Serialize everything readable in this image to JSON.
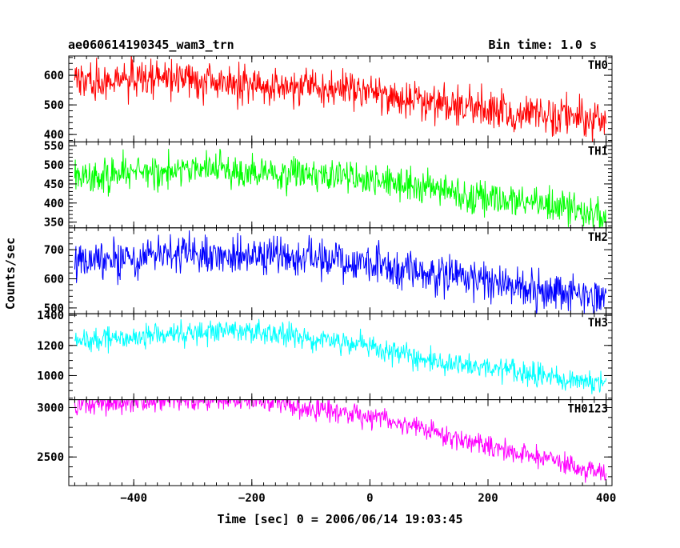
{
  "chart_data": {
    "type": "line",
    "title": "ae060614190345_wam3_trn",
    "subtitle": "Bin time: 1.0 s",
    "xlabel": "Time [sec] 0 = 2006/06/14 19:03:45",
    "ylabel": "Counts/sec",
    "xlim": [
      -510,
      410
    ],
    "x_ticks": [
      -400,
      -200,
      0,
      200,
      400
    ],
    "x_tick_labels": [
      "−400",
      "−200",
      "0",
      "200",
      "400"
    ],
    "x_minor_step": 20,
    "bin_time_s": 1.0,
    "grid": false,
    "panels": [
      {
        "name": "TH0",
        "color": "#ff0000",
        "ylim": [
          375,
          665
        ],
        "y_ticks": [
          400,
          500,
          600
        ],
        "y_tick_labels": [
          "400",
          "500",
          "600"
        ],
        "y_minor_step": 20,
        "noise_sd": 32,
        "trend": [
          [
            -500,
            575
          ],
          [
            -400,
            588
          ],
          [
            -300,
            590
          ],
          [
            -250,
            575
          ],
          [
            -200,
            572
          ],
          [
            -100,
            560
          ],
          [
            0,
            540
          ],
          [
            100,
            510
          ],
          [
            200,
            488
          ],
          [
            300,
            462
          ],
          [
            400,
            445
          ]
        ]
      },
      {
        "name": "TH1",
        "color": "#00ff00",
        "ylim": [
          335,
          560
        ],
        "y_ticks": [
          350,
          400,
          450,
          500,
          550
        ],
        "y_tick_labels": [
          "350",
          "400",
          "450",
          "500",
          "550"
        ],
        "y_minor_step": 10,
        "noise_sd": 22,
        "trend": [
          [
            -500,
            475
          ],
          [
            -400,
            483
          ],
          [
            -300,
            488
          ],
          [
            -200,
            482
          ],
          [
            -100,
            475
          ],
          [
            0,
            462
          ],
          [
            100,
            440
          ],
          [
            200,
            418
          ],
          [
            300,
            395
          ],
          [
            400,
            375
          ]
        ]
      },
      {
        "name": "TH2",
        "color": "#0000ff",
        "ylim": [
          480,
          775
        ],
        "y_ticks": [
          500,
          600,
          700
        ],
        "y_tick_labels": [
          "500",
          "600",
          "700"
        ],
        "y_minor_step": 20,
        "noise_sd": 33,
        "trend": [
          [
            -500,
            660
          ],
          [
            -400,
            672
          ],
          [
            -300,
            682
          ],
          [
            -200,
            680
          ],
          [
            -100,
            672
          ],
          [
            0,
            650
          ],
          [
            100,
            615
          ],
          [
            200,
            590
          ],
          [
            300,
            560
          ],
          [
            400,
            535
          ]
        ]
      },
      {
        "name": "TH3",
        "color": "#00ffff",
        "ylim": [
          840,
          1410
        ],
        "y_ticks": [
          1000,
          1200,
          1400
        ],
        "y_tick_labels": [
          "1000",
          "1200",
          "1400"
        ],
        "y_minor_step": 50,
        "noise_sd": 38,
        "trend": [
          [
            -500,
            1220
          ],
          [
            -400,
            1258
          ],
          [
            -300,
            1292
          ],
          [
            -200,
            1295
          ],
          [
            -150,
            1280
          ],
          [
            -100,
            1240
          ],
          [
            0,
            1200
          ],
          [
            100,
            1100
          ],
          [
            200,
            1055
          ],
          [
            300,
            995
          ],
          [
            400,
            950
          ]
        ]
      },
      {
        "name": "TH0123",
        "color": "#ff00ff",
        "ylim": [
          2210,
          3080
        ],
        "y_ticks": [
          2500,
          3000
        ],
        "y_tick_labels": [
          "2500",
          "3000"
        ],
        "y_minor_step": 100,
        "noise_sd": 55,
        "trend": [
          [
            -500,
            3030
          ],
          [
            -400,
            3060
          ],
          [
            -300,
            3080
          ],
          [
            -200,
            3080
          ],
          [
            -150,
            3050
          ],
          [
            -100,
            2990
          ],
          [
            0,
            2920
          ],
          [
            100,
            2770
          ],
          [
            200,
            2600
          ],
          [
            300,
            2480
          ],
          [
            400,
            2330
          ]
        ]
      }
    ]
  }
}
